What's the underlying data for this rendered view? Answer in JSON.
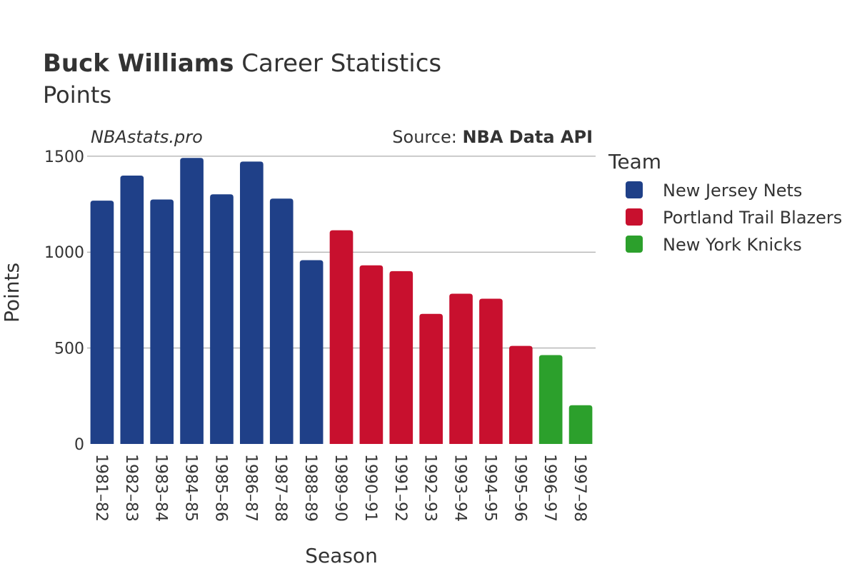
{
  "title": {
    "bold": "Buck Williams",
    "rest": "Career Statistics"
  },
  "subtitle": "Points",
  "watermark": "NBAstats.pro",
  "source": {
    "prefix": "Source: ",
    "bold": "NBA Data API"
  },
  "chart_data": {
    "type": "bar",
    "xlabel": "Season",
    "ylabel": "Points",
    "ylim": [
      0,
      1500
    ],
    "yticks": [
      0,
      500,
      1000,
      1500
    ],
    "grid": true,
    "legend": {
      "title": "Team",
      "placement": "right"
    },
    "teams": [
      {
        "name": "New Jersey Nets",
        "color": "#1f4088"
      },
      {
        "name": "Portland Trail Blazers",
        "color": "#c8102e"
      },
      {
        "name": "New York Knicks",
        "color": "#2ca02c"
      }
    ],
    "categories": [
      "1981–82",
      "1982–83",
      "1983–84",
      "1984–85",
      "1985–86",
      "1986–87",
      "1987–88",
      "1988–89",
      "1989–90",
      "1990–91",
      "1991–92",
      "1992–93",
      "1993–94",
      "1994–95",
      "1995–96",
      "1996–97",
      "1997–98"
    ],
    "values": [
      1268,
      1399,
      1274,
      1491,
      1301,
      1472,
      1279,
      958,
      1114,
      931,
      901,
      678,
      783,
      757,
      511,
      463,
      202
    ],
    "team_index": [
      0,
      0,
      0,
      0,
      0,
      0,
      0,
      0,
      1,
      1,
      1,
      1,
      1,
      1,
      1,
      2,
      2
    ]
  }
}
